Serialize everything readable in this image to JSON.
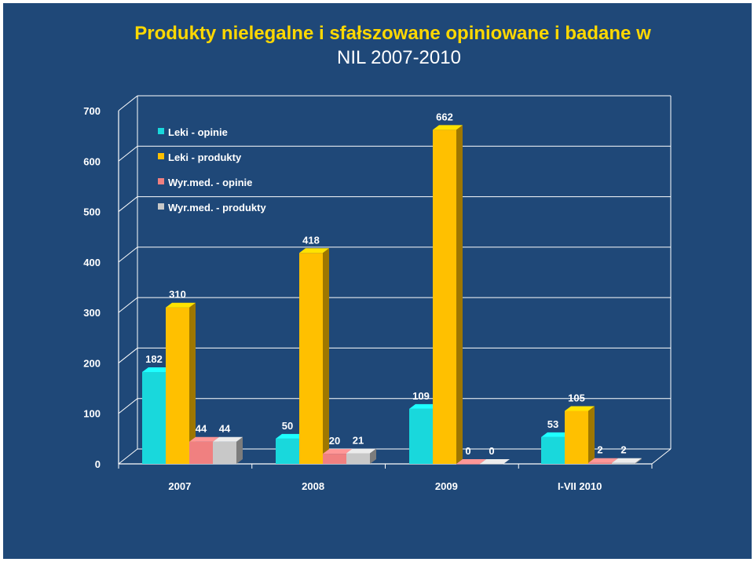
{
  "slide": {
    "title": "Produkty nielegalne i sfałszowane opiniowane i badane w",
    "subtitle": "NIL 2007-2010"
  },
  "chart_data": {
    "type": "bar",
    "categories": [
      "2007",
      "2008",
      "2009",
      "I-VII 2010"
    ],
    "series": [
      {
        "name": "Leki - opinie",
        "values": [
          182,
          50,
          109,
          53
        ],
        "color": "#19d8dc"
      },
      {
        "name": "Leki - produkty",
        "values": [
          310,
          418,
          662,
          105
        ],
        "color": "#ffc000"
      },
      {
        "name": "Wyr.med. - opinie",
        "values": [
          44,
          20,
          0,
          2
        ],
        "color": "#f08080"
      },
      {
        "name": "Wyr.med. - produkty",
        "values": [
          44,
          21,
          0,
          2
        ],
        "color": "#c8c8c8"
      }
    ],
    "ylim": [
      0,
      700
    ],
    "yticks": [
      0,
      100,
      200,
      300,
      400,
      500,
      600,
      700
    ],
    "grid": true,
    "legend": "top-left",
    "data_labels": true,
    "background": "#1f4878"
  }
}
